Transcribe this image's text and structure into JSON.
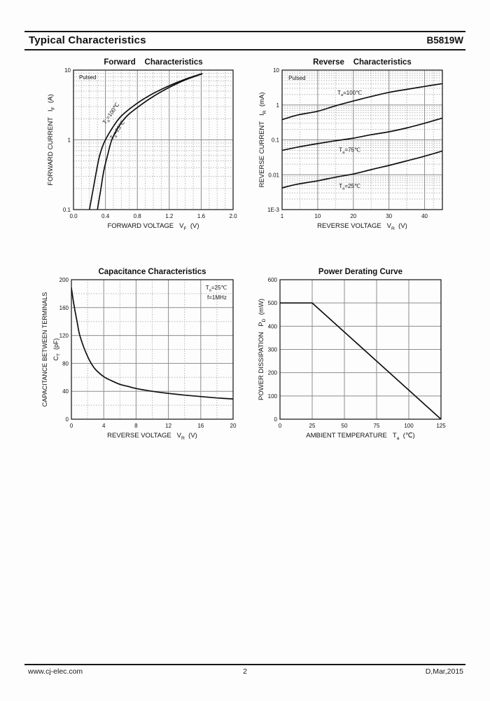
{
  "page": {
    "header": {
      "title": "Typical Characteristics",
      "part_number": "B5819W"
    },
    "footer": {
      "website": "www.cj-elec.com",
      "page_number": "2",
      "revision_date": "D,Mar,2015"
    }
  },
  "colors": {
    "curve": "#101010",
    "grid_major": "#8d8d8d",
    "grid_minor": "#acacac",
    "frame": "#222222",
    "text": "#111111"
  },
  "chart_data": [
    {
      "id": "forward",
      "type": "line",
      "title": "Forward    Characteristics",
      "xlabel": {
        "pre": "FORWARD VOLTAGE",
        "sym": "V",
        "sub": "F",
        "unit": "(V)"
      },
      "ylabel": {
        "pre": "FORWARD CURRENT",
        "sym": "I",
        "sub": "F",
        "unit": "(A)"
      },
      "x": {
        "scale": "linear",
        "min": 0,
        "max": 2,
        "minor_step": 0.1,
        "ticks": [
          [
            0,
            "0.0"
          ],
          [
            0.4,
            "0.4"
          ],
          [
            0.8,
            "0.8"
          ],
          [
            1.2,
            "1.2"
          ],
          [
            1.6,
            "1.6"
          ],
          [
            2,
            "2.0"
          ]
        ]
      },
      "y": {
        "scale": "log",
        "min": 0.1,
        "max": 10,
        "ticks": [
          [
            10,
            "10"
          ],
          [
            1,
            "1"
          ],
          [
            0.1,
            "0.1"
          ]
        ]
      },
      "annotations": [
        {
          "text": "Pulsed",
          "fx": 0.035,
          "fy": 0.065
        },
        {
          "sym": "T",
          "sub": "a",
          "rest": "=100℃",
          "fx": 0.2,
          "fy": 0.39,
          "rotate": -55
        },
        {
          "sym": "T",
          "sub": "a",
          "rest": "=25℃",
          "fx": 0.245,
          "fy": 0.5,
          "rotate": -55
        }
      ],
      "series": [
        {
          "name": "Ta=100℃",
          "points": [
            [
              0.2,
              0.1
            ],
            [
              0.24,
              0.18
            ],
            [
              0.28,
              0.32
            ],
            [
              0.32,
              0.55
            ],
            [
              0.36,
              0.78
            ],
            [
              0.4,
              1.0
            ],
            [
              0.49,
              1.5
            ],
            [
              0.6,
              2.2
            ],
            [
              0.79,
              3.3
            ],
            [
              0.98,
              4.5
            ],
            [
              1.19,
              5.9
            ],
            [
              1.4,
              7.4
            ],
            [
              1.61,
              8.9
            ]
          ]
        },
        {
          "name": "Ta=25℃",
          "points": [
            [
              0.3,
              0.1
            ],
            [
              0.34,
              0.19
            ],
            [
              0.38,
              0.36
            ],
            [
              0.43,
              0.62
            ],
            [
              0.48,
              1.0
            ],
            [
              0.56,
              1.5
            ],
            [
              0.67,
              2.2
            ],
            [
              0.85,
              3.2
            ],
            [
              1.03,
              4.4
            ],
            [
              1.22,
              5.8
            ],
            [
              1.41,
              7.3
            ],
            [
              1.61,
              8.8
            ]
          ]
        }
      ]
    },
    {
      "id": "reverse",
      "type": "line",
      "title": "Reverse    Characteristics",
      "xlabel": {
        "pre": "REVERSE VOLTAGE",
        "sym": "V",
        "sub": "R",
        "unit": "(V)"
      },
      "ylabel": {
        "pre": "REVERSE CURRENT",
        "sym": "I",
        "sub": "R",
        "unit": "(mA)"
      },
      "x": {
        "scale": "seg10",
        "min": 1,
        "max": 45,
        "minors": [
          5.5,
          15,
          25,
          35,
          42.5
        ],
        "ticks": [
          [
            1,
            "1"
          ],
          [
            10,
            "10"
          ],
          [
            20,
            "20"
          ],
          [
            30,
            "30"
          ],
          [
            40,
            "40"
          ]
        ]
      },
      "y": {
        "scale": "log",
        "min": 0.001,
        "max": 10,
        "ticks": [
          [
            10,
            "10"
          ],
          [
            1,
            "1"
          ],
          [
            0.1,
            "0.1"
          ],
          [
            0.01,
            "0.01"
          ],
          [
            0.001,
            "1E-3"
          ]
        ]
      },
      "annotations": [
        {
          "text": "Pulsed",
          "fx": 0.04,
          "fy": 0.07
        },
        {
          "sym": "T",
          "sub": "a",
          "rest": "=100℃",
          "fx": 0.345,
          "fy": 0.175
        },
        {
          "sym": "T",
          "sub": "a",
          "rest": "=75℃",
          "fx": 0.355,
          "fy": 0.585
        },
        {
          "sym": "T",
          "sub": "a",
          "rest": "=25℃",
          "fx": 0.355,
          "fy": 0.845
        }
      ],
      "series": [
        {
          "name": "Ta=100℃",
          "points": [
            [
              1,
              0.38
            ],
            [
              5,
              0.52
            ],
            [
              10,
              0.66
            ],
            [
              15,
              0.95
            ],
            [
              20,
              1.3
            ],
            [
              25,
              1.75
            ],
            [
              30,
              2.3
            ],
            [
              35,
              2.8
            ],
            [
              40,
              3.4
            ],
            [
              45,
              4.1
            ]
          ]
        },
        {
          "name": "Ta=75℃",
          "points": [
            [
              1,
              0.05
            ],
            [
              5,
              0.062
            ],
            [
              10,
              0.078
            ],
            [
              15,
              0.094
            ],
            [
              20,
              0.112
            ],
            [
              25,
              0.14
            ],
            [
              30,
              0.17
            ],
            [
              35,
              0.22
            ],
            [
              40,
              0.3
            ],
            [
              45,
              0.42
            ]
          ]
        },
        {
          "name": "Ta=25℃",
          "points": [
            [
              1,
              0.0042
            ],
            [
              5,
              0.0054
            ],
            [
              10,
              0.0067
            ],
            [
              15,
              0.0085
            ],
            [
              20,
              0.0105
            ],
            [
              25,
              0.014
            ],
            [
              30,
              0.0185
            ],
            [
              35,
              0.025
            ],
            [
              40,
              0.034
            ],
            [
              45,
              0.048
            ]
          ]
        }
      ]
    },
    {
      "id": "capacitance",
      "type": "line",
      "title": "Capacitance Characteristics",
      "xlabel": {
        "pre": "REVERSE VOLTAGE",
        "sym": "V",
        "sub": "R",
        "unit": "(V)"
      },
      "ylabel": {
        "pre": "CAPACITANCE BETWEEN TERMINALS",
        "sym": "C",
        "sub": "T",
        "unit": "(pF)",
        "two_line": true
      },
      "x": {
        "scale": "linear",
        "min": 0,
        "max": 20,
        "minor_step": 2,
        "ticks": [
          [
            0,
            "0"
          ],
          [
            4,
            "4"
          ],
          [
            8,
            "8"
          ],
          [
            12,
            "12"
          ],
          [
            16,
            "16"
          ],
          [
            20,
            "20"
          ]
        ]
      },
      "y": {
        "scale": "linear",
        "min": 0,
        "max": 200,
        "minor_step": 20,
        "ticks": [
          [
            0,
            "0"
          ],
          [
            40,
            "40"
          ],
          [
            80,
            "80"
          ],
          [
            120,
            "120"
          ],
          [
            160,
            "160"
          ],
          [
            200,
            "200"
          ]
        ]
      },
      "annotations": [
        {
          "sym": "T",
          "sub": "a",
          "rest": "=25℃",
          "fx": 0.83,
          "fy": 0.07
        },
        {
          "text": "f=1MHz",
          "fx": 0.84,
          "fy": 0.14
        }
      ],
      "series": [
        {
          "name": "CT",
          "points": [
            [
              0,
              188
            ],
            [
              0.3,
              165
            ],
            [
              0.7,
              140
            ],
            [
              1,
              122
            ],
            [
              1.5,
              104
            ],
            [
              2,
              90
            ],
            [
              2.5,
              79
            ],
            [
              3,
              71
            ],
            [
              4,
              61
            ],
            [
              5,
              55
            ],
            [
              6,
              50
            ],
            [
              7,
              47
            ],
            [
              8,
              44
            ],
            [
              10,
              40
            ],
            [
              12,
              37
            ],
            [
              14,
              34.5
            ],
            [
              16,
              32.5
            ],
            [
              18,
              30.5
            ],
            [
              20,
              29
            ]
          ]
        }
      ]
    },
    {
      "id": "power",
      "type": "line",
      "title": "Power Derating Curve",
      "xlabel": {
        "pre": "AMBIENT TEMPERATURE",
        "sym": "T",
        "sub": "a",
        "unit": "(℃)"
      },
      "ylabel": {
        "pre": "POWER DISSIPATION",
        "sym": "P",
        "sub": "D",
        "unit": "(mW)"
      },
      "x": {
        "scale": "linear",
        "min": 0,
        "max": 125,
        "ticks": [
          [
            0,
            "0"
          ],
          [
            25,
            "25"
          ],
          [
            50,
            "50"
          ],
          [
            75,
            "75"
          ],
          [
            100,
            "100"
          ],
          [
            125,
            "125"
          ]
        ]
      },
      "y": {
        "scale": "linear",
        "min": 0,
        "max": 600,
        "ticks": [
          [
            0,
            "0"
          ],
          [
            100,
            "100"
          ],
          [
            200,
            "200"
          ],
          [
            300,
            "300"
          ],
          [
            400,
            "400"
          ],
          [
            500,
            "500"
          ],
          [
            600,
            "600"
          ]
        ]
      },
      "annotations": [],
      "series": [
        {
          "name": "PD",
          "smooth": false,
          "points": [
            [
              0,
              500
            ],
            [
              25,
              500
            ],
            [
              125,
              0
            ]
          ]
        }
      ]
    }
  ]
}
